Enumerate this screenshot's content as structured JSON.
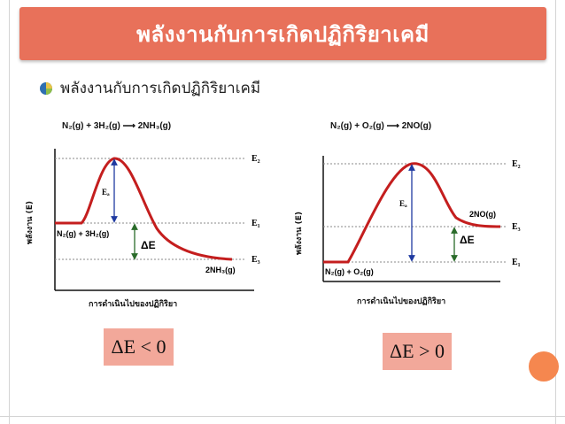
{
  "slide": {
    "title": "พลังงานกับการเกิดปฏิกิริยาเคมี",
    "bullet": "พลังงานกับการเกิดปฏิกิริยาเคมี",
    "accent_color": "#e8715a",
    "box_color": "#f2a89a",
    "dot_color": "#f5874f"
  },
  "diagrams": {
    "left": {
      "equation": "N₂(g) + 3H₂(g) ⟶ 2NH₃(g)",
      "ylabel": "พลังงาน (E)",
      "xlabel": "การดำเนินไปของปฏิกิริยา",
      "ea_label": "Eₐ",
      "de_label": "ΔE",
      "reactant_label": "N₂(g) + 3H₂(g)",
      "product_label": "2NH₃(g)",
      "levels": {
        "top": "E₂",
        "mid": "E₁",
        "bottom": "E₃"
      },
      "result": "ΔE < 0"
    },
    "right": {
      "equation": "N₂(g) + O₂(g) ⟶ 2NO(g)",
      "ylabel": "พลังงาน (E)",
      "xlabel": "การดำเนินไปของปฏิกิริยา",
      "ea_label": "Eₐ",
      "de_label": "ΔE",
      "reactant_label": "N₂(g) + O₂(g)",
      "product_label": "2NO(g)",
      "levels": {
        "top": "E₂",
        "mid": "E₃",
        "bottom": "E₁"
      },
      "result": "ΔE > 0"
    }
  }
}
